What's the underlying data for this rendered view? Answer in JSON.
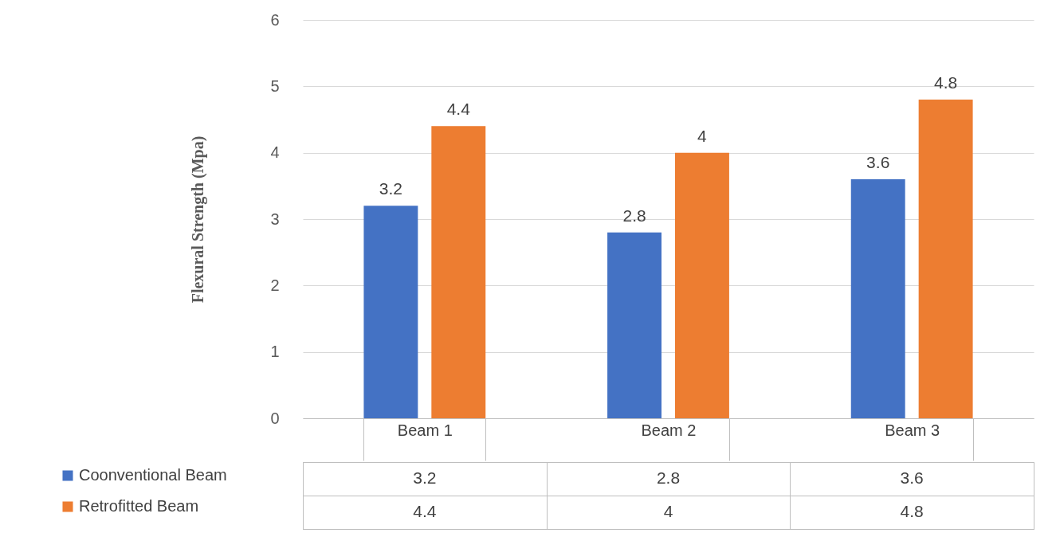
{
  "chart_data": {
    "type": "bar",
    "ylabel": "Flexural Strength (Mpa)",
    "categories": [
      "Beam 1",
      "Beam 2",
      "Beam 3"
    ],
    "series": [
      {
        "name": "Coonventional Beam",
        "color": "#4472c4",
        "values": [
          3.2,
          2.8,
          3.6
        ],
        "value_labels": [
          "3.2",
          "2.8",
          "3.6"
        ]
      },
      {
        "name": "Retrofitted Beam",
        "color": "#ed7d31",
        "values": [
          4.4,
          4,
          4.8
        ],
        "value_labels": [
          "4.4",
          "4",
          "4.8"
        ]
      }
    ],
    "ylim": [
      0,
      6
    ],
    "yticks": [
      0,
      1,
      2,
      3,
      4,
      5,
      6
    ],
    "grid": "y",
    "legend": "bottom left"
  }
}
